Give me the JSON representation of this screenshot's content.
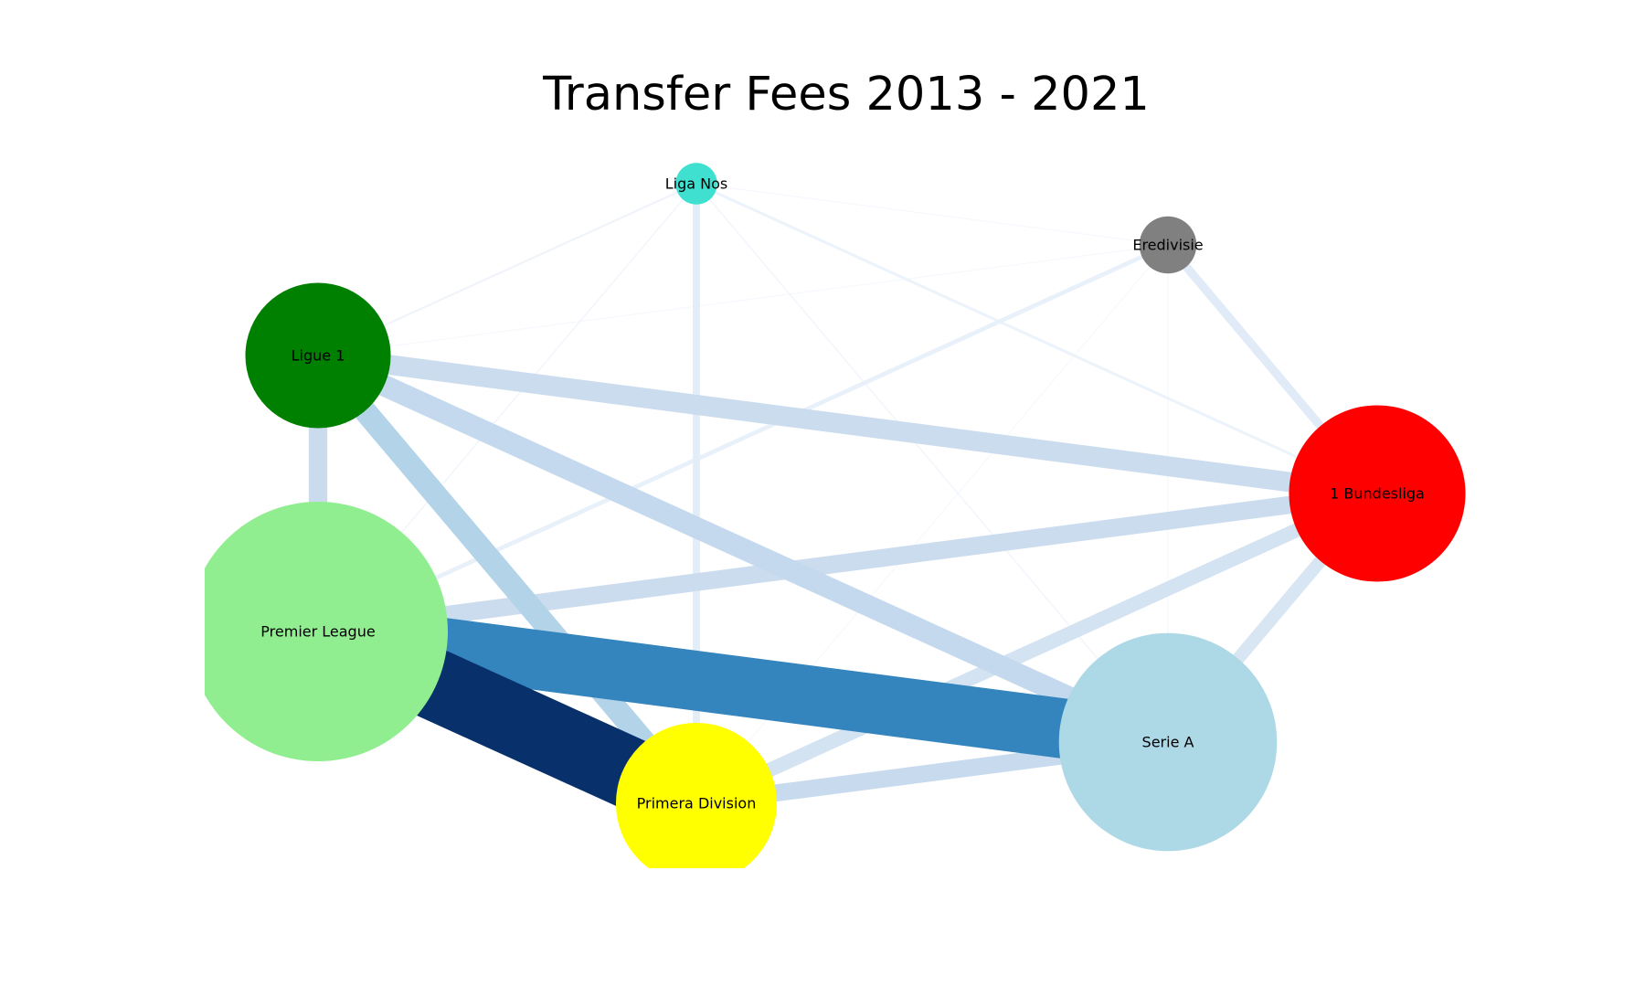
{
  "title": "Transfer Fees 2013 - 2021",
  "nodes": [
    {
      "id": "liga-nos",
      "label": "Liga Nos",
      "color": "#40e0d0",
      "size": 0.16
    },
    {
      "id": "eredivisie",
      "label": "Eredivisie",
      "color": "#808080",
      "size": 0.22
    },
    {
      "id": "ligue-1",
      "label": "Ligue 1",
      "color": "#008000",
      "size": 0.56
    },
    {
      "id": "bundesliga",
      "label": "1 Bundesliga",
      "color": "#ff0000",
      "size": 0.68
    },
    {
      "id": "premier-league",
      "label": "Premier League",
      "color": "#90ee90",
      "size": 1.0
    },
    {
      "id": "primera-division",
      "label": "Primera Division",
      "color": "#ffff00",
      "size": 0.62
    },
    {
      "id": "serie-a",
      "label": "Serie A",
      "color": "#add8e6",
      "size": 0.84
    }
  ],
  "edges": [
    {
      "source": "premier-league",
      "target": "primera-division",
      "weight": 1.0,
      "color": "#08306b"
    },
    {
      "source": "premier-league",
      "target": "serie-a",
      "weight": 0.84,
      "color": "#3484be"
    },
    {
      "source": "ligue-1",
      "target": "primera-division",
      "weight": 0.32,
      "color": "#b3d3e8"
    },
    {
      "source": "ligue-1",
      "target": "serie-a",
      "weight": 0.3,
      "color": "#c4d9ed"
    },
    {
      "source": "ligue-1",
      "target": "bundesliga",
      "weight": 0.28,
      "color": "#cbdcee"
    },
    {
      "source": "premier-league",
      "target": "bundesliga",
      "weight": 0.25,
      "color": "#ccdcef"
    },
    {
      "source": "ligue-1",
      "target": "premier-league",
      "weight": 0.26,
      "color": "#cadbed"
    },
    {
      "source": "primera-division",
      "target": "serie-a",
      "weight": 0.24,
      "color": "#c7daee"
    },
    {
      "source": "primera-division",
      "target": "bundesliga",
      "weight": 0.2,
      "color": "#d3e3f2"
    },
    {
      "source": "serie-a",
      "target": "bundesliga",
      "weight": 0.18,
      "color": "#d8e6f4"
    },
    {
      "source": "eredivisie",
      "target": "bundesliga",
      "weight": 0.12,
      "color": "#e0ebf7"
    },
    {
      "source": "liga-nos",
      "target": "primera-division",
      "weight": 0.1,
      "color": "#e3edf8"
    },
    {
      "source": "eredivisie",
      "target": "premier-league",
      "weight": 0.06,
      "color": "#e8f0f9"
    },
    {
      "source": "liga-nos",
      "target": "bundesliga",
      "weight": 0.04,
      "color": "#edf3fa"
    },
    {
      "source": "liga-nos",
      "target": "ligue-1",
      "weight": 0.03,
      "color": "#f1f5fb"
    },
    {
      "source": "liga-nos",
      "target": "serie-a",
      "weight": 0.02,
      "color": "#f2f6fc"
    },
    {
      "source": "liga-nos",
      "target": "premier-league",
      "weight": 0.02,
      "color": "#f2f6fc"
    },
    {
      "source": "liga-nos",
      "target": "eredivisie",
      "weight": 0.01,
      "color": "#f5f8fd"
    },
    {
      "source": "eredivisie",
      "target": "ligue-1",
      "weight": 0.01,
      "color": "#f5f8fd"
    },
    {
      "source": "eredivisie",
      "target": "primera-division",
      "weight": 0.01,
      "color": "#f5f8fd"
    },
    {
      "source": "eredivisie",
      "target": "serie-a",
      "weight": 0.01,
      "color": "#f5f8fd"
    }
  ]
}
